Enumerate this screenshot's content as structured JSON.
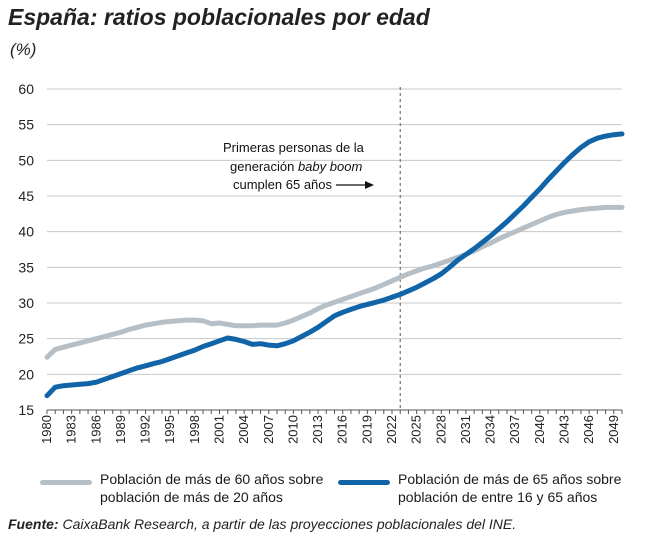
{
  "header": {
    "title": "España: ratios poblacionales por edad",
    "unit": "(%)"
  },
  "source": {
    "label": "Fuente:",
    "text": " CaixaBank Research, a partir de las proyecciones poblacionales del INE."
  },
  "colors": {
    "series_gray": "#b7bfc6",
    "series_blue": "#1164a8",
    "grid": "#c8c8c8",
    "axis": "#555555"
  },
  "chart_data": {
    "type": "line",
    "title": "España: ratios poblacionales por edad",
    "ylabel": "(%)",
    "xlabel": "",
    "xlim": [
      1980,
      2050
    ],
    "ylim": [
      15,
      60
    ],
    "y_ticks": [
      15,
      20,
      25,
      30,
      35,
      40,
      45,
      50,
      55,
      60
    ],
    "x_ticks": [
      "1980",
      "1983",
      "1986",
      "1989",
      "1992",
      "1995",
      "1998",
      "2001",
      "2004",
      "2007",
      "2010",
      "2013",
      "2016",
      "2019",
      "2022",
      "2025",
      "2028",
      "2031",
      "2034",
      "2037",
      "2040",
      "2043",
      "2046",
      "2049"
    ],
    "grid": "horizontal",
    "legend_position": "bottom",
    "vline": {
      "x": 2023,
      "style": "dashed"
    },
    "annotation": {
      "lines": [
        "Primeras personas de la",
        "generación ",
        "baby boom",
        "cumplen 65 años"
      ],
      "arrow": "right"
    },
    "series": [
      {
        "name": "Población de más de 60 años sobre\npoblación de más de 20 años",
        "color": "#b7bfc6",
        "points": [
          [
            1980,
            22.4
          ],
          [
            1981,
            23.5
          ],
          [
            1982,
            23.8
          ],
          [
            1983,
            24.1
          ],
          [
            1984,
            24.4
          ],
          [
            1985,
            24.7
          ],
          [
            1986,
            25.0
          ],
          [
            1987,
            25.3
          ],
          [
            1988,
            25.6
          ],
          [
            1989,
            25.9
          ],
          [
            1990,
            26.3
          ],
          [
            1991,
            26.6
          ],
          [
            1992,
            26.9
          ],
          [
            1993,
            27.1
          ],
          [
            1994,
            27.3
          ],
          [
            1995,
            27.4
          ],
          [
            1996,
            27.5
          ],
          [
            1997,
            27.6
          ],
          [
            1998,
            27.6
          ],
          [
            1999,
            27.5
          ],
          [
            2000,
            27.1
          ],
          [
            2001,
            27.2
          ],
          [
            2002,
            27.0
          ],
          [
            2003,
            26.8
          ],
          [
            2004,
            26.8
          ],
          [
            2005,
            26.8
          ],
          [
            2006,
            26.9
          ],
          [
            2007,
            26.9
          ],
          [
            2008,
            26.9
          ],
          [
            2009,
            27.2
          ],
          [
            2010,
            27.6
          ],
          [
            2011,
            28.1
          ],
          [
            2012,
            28.6
          ],
          [
            2013,
            29.2
          ],
          [
            2014,
            29.7
          ],
          [
            2015,
            30.1
          ],
          [
            2016,
            30.5
          ],
          [
            2017,
            30.9
          ],
          [
            2018,
            31.3
          ],
          [
            2019,
            31.7
          ],
          [
            2020,
            32.1
          ],
          [
            2021,
            32.6
          ],
          [
            2022,
            33.1
          ],
          [
            2023,
            33.6
          ],
          [
            2024,
            34.1
          ],
          [
            2025,
            34.5
          ],
          [
            2026,
            34.9
          ],
          [
            2027,
            35.2
          ],
          [
            2028,
            35.6
          ],
          [
            2029,
            36.0
          ],
          [
            2030,
            36.4
          ],
          [
            2031,
            36.8
          ],
          [
            2032,
            37.3
          ],
          [
            2033,
            37.9
          ],
          [
            2034,
            38.4
          ],
          [
            2035,
            39.0
          ],
          [
            2036,
            39.5
          ],
          [
            2037,
            40.0
          ],
          [
            2038,
            40.5
          ],
          [
            2039,
            41.0
          ],
          [
            2040,
            41.5
          ],
          [
            2041,
            42.0
          ],
          [
            2042,
            42.4
          ],
          [
            2043,
            42.7
          ],
          [
            2044,
            42.9
          ],
          [
            2045,
            43.1
          ],
          [
            2046,
            43.2
          ],
          [
            2047,
            43.3
          ],
          [
            2048,
            43.4
          ],
          [
            2049,
            43.4
          ],
          [
            2050,
            43.4
          ]
        ]
      },
      {
        "name": "Población de más de 65 años sobre\npoblación de entre 16 y 65 años",
        "color": "#1164a8",
        "points": [
          [
            1980,
            17.0
          ],
          [
            1981,
            18.2
          ],
          [
            1982,
            18.4
          ],
          [
            1983,
            18.5
          ],
          [
            1984,
            18.6
          ],
          [
            1985,
            18.7
          ],
          [
            1986,
            18.9
          ],
          [
            1987,
            19.3
          ],
          [
            1988,
            19.7
          ],
          [
            1989,
            20.1
          ],
          [
            1990,
            20.5
          ],
          [
            1991,
            20.9
          ],
          [
            1992,
            21.2
          ],
          [
            1993,
            21.5
          ],
          [
            1994,
            21.8
          ],
          [
            1995,
            22.2
          ],
          [
            1996,
            22.6
          ],
          [
            1997,
            23.0
          ],
          [
            1998,
            23.4
          ],
          [
            1999,
            23.9
          ],
          [
            2000,
            24.3
          ],
          [
            2001,
            24.7
          ],
          [
            2002,
            25.1
          ],
          [
            2003,
            24.9
          ],
          [
            2004,
            24.6
          ],
          [
            2005,
            24.2
          ],
          [
            2006,
            24.3
          ],
          [
            2007,
            24.1
          ],
          [
            2008,
            24.0
          ],
          [
            2009,
            24.3
          ],
          [
            2010,
            24.7
          ],
          [
            2011,
            25.3
          ],
          [
            2012,
            25.9
          ],
          [
            2013,
            26.6
          ],
          [
            2014,
            27.4
          ],
          [
            2015,
            28.2
          ],
          [
            2016,
            28.7
          ],
          [
            2017,
            29.1
          ],
          [
            2018,
            29.5
          ],
          [
            2019,
            29.8
          ],
          [
            2020,
            30.1
          ],
          [
            2021,
            30.4
          ],
          [
            2022,
            30.8
          ],
          [
            2023,
            31.2
          ],
          [
            2024,
            31.7
          ],
          [
            2025,
            32.2
          ],
          [
            2026,
            32.8
          ],
          [
            2027,
            33.4
          ],
          [
            2028,
            34.1
          ],
          [
            2029,
            35.0
          ],
          [
            2030,
            36.0
          ],
          [
            2031,
            36.8
          ],
          [
            2032,
            37.6
          ],
          [
            2033,
            38.5
          ],
          [
            2034,
            39.4
          ],
          [
            2035,
            40.4
          ],
          [
            2036,
            41.4
          ],
          [
            2037,
            42.5
          ],
          [
            2038,
            43.6
          ],
          [
            2039,
            44.8
          ],
          [
            2040,
            46.0
          ],
          [
            2041,
            47.3
          ],
          [
            2042,
            48.5
          ],
          [
            2043,
            49.7
          ],
          [
            2044,
            50.8
          ],
          [
            2045,
            51.8
          ],
          [
            2046,
            52.6
          ],
          [
            2047,
            53.1
          ],
          [
            2048,
            53.4
          ],
          [
            2049,
            53.6
          ],
          [
            2050,
            53.7
          ]
        ]
      }
    ]
  }
}
